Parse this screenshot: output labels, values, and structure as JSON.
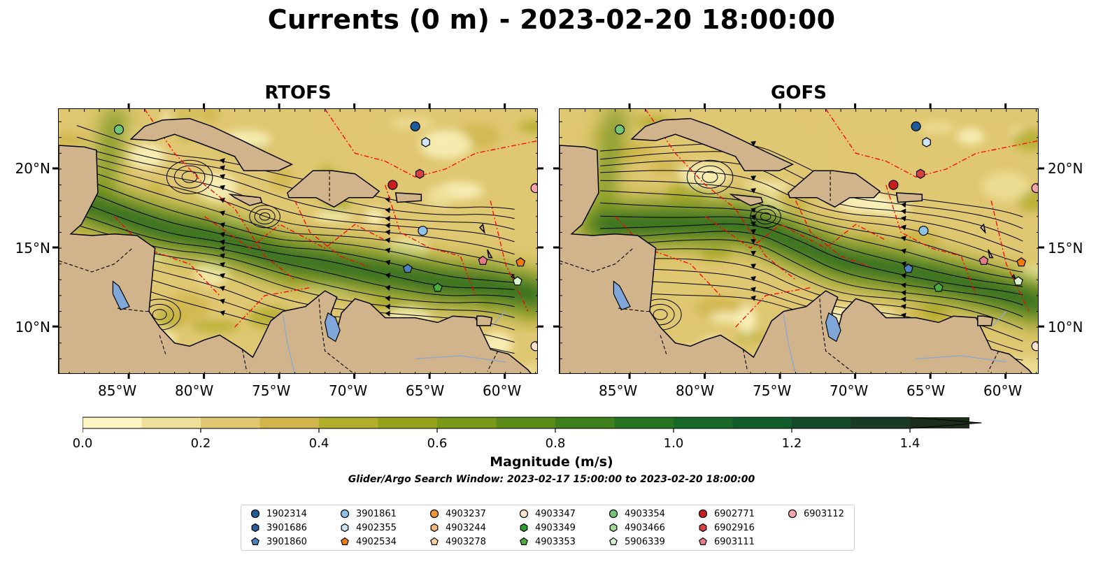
{
  "title": "Currents (0 m) - 2023-02-20 18:00:00",
  "panels": [
    {
      "title": "RTOFS"
    },
    {
      "title": "GOFS"
    }
  ],
  "map": {
    "lon_ticks": [
      "85°W",
      "80°W",
      "75°W",
      "70°W",
      "65°W",
      "60°W"
    ],
    "lat_ticks": [
      "20°N",
      "15°N",
      "10°N"
    ],
    "extent": {
      "lon": [
        -89.7,
        -57.8
      ],
      "lat": [
        7.0,
        23.8
      ]
    },
    "land_color": "#d2b48c",
    "lake_color": "#7fa7d9",
    "boundary_color": "#ff0000"
  },
  "colorbar": {
    "label": "Magnitude (m/s)",
    "tick_labels": [
      "0.0",
      "0.2",
      "0.4",
      "0.6",
      "0.8",
      "1.0",
      "1.2",
      "1.4"
    ],
    "range": [
      0.0,
      1.5
    ],
    "step": 0.1,
    "colors": [
      "#fdf6c3",
      "#efe09a",
      "#e0c772",
      "#cfb54b",
      "#b3ad2c",
      "#95a31b",
      "#79981a",
      "#5b8c1a",
      "#3f801c",
      "#287421",
      "#176928",
      "#115c2b",
      "#15492a",
      "#193a24",
      "#1c2e1b"
    ],
    "extend": "max"
  },
  "search_window": "Glider/Argo Search Window: 2023-02-17 15:00:00 to 2023-02-20 18:00:00",
  "legend": [
    {
      "id": "1902314",
      "marker": "circle",
      "color": "#1f5c99"
    },
    {
      "id": "3901686",
      "marker": "hexagon",
      "color": "#2a5d9c"
    },
    {
      "id": "3901860",
      "marker": "pentagon",
      "color": "#4a82c2"
    },
    {
      "id": "3901861",
      "marker": "circle",
      "color": "#8fc0e8"
    },
    {
      "id": "4902355",
      "marker": "hexagon",
      "color": "#cfe4f5"
    },
    {
      "id": "4902534",
      "marker": "pentagon",
      "color": "#f07c10"
    },
    {
      "id": "4903237",
      "marker": "circle",
      "color": "#f39436"
    },
    {
      "id": "4903244",
      "marker": "hexagon",
      "color": "#f8b47a"
    },
    {
      "id": "4903278",
      "marker": "pentagon",
      "color": "#fbcf9e"
    },
    {
      "id": "4903347",
      "marker": "circle",
      "color": "#fce4cc"
    },
    {
      "id": "4903349",
      "marker": "hexagon",
      "color": "#2ca02c"
    },
    {
      "id": "4903353",
      "marker": "pentagon",
      "color": "#4aae3a"
    },
    {
      "id": "4903354",
      "marker": "circle",
      "color": "#74c476"
    },
    {
      "id": "4903466",
      "marker": "hexagon",
      "color": "#a1d99b"
    },
    {
      "id": "5906339",
      "marker": "pentagon",
      "color": "#d7f2c8"
    },
    {
      "id": "6902771",
      "marker": "circle",
      "color": "#c81e1e"
    },
    {
      "id": "6902916",
      "marker": "hexagon",
      "color": "#d94040"
    },
    {
      "id": "6903111",
      "marker": "pentagon",
      "color": "#e87a86"
    },
    {
      "id": "6903112",
      "marker": "circle",
      "color": "#f6a5aa"
    }
  ],
  "floats": [
    {
      "id": "4903354",
      "lon": -85.7,
      "lat": 22.5
    },
    {
      "id": "1902314",
      "lon": -66.0,
      "lat": 22.7
    },
    {
      "id": "4902355",
      "lon": -65.3,
      "lat": 21.7
    },
    {
      "id": "6902916",
      "lon": -65.7,
      "lat": 19.7
    },
    {
      "id": "6902771",
      "lon": -67.5,
      "lat": 19.0
    },
    {
      "id": "6903112",
      "lon": -58.0,
      "lat": 18.8
    },
    {
      "id": "3901861",
      "lon": -65.5,
      "lat": 16.1
    },
    {
      "id": "6903111",
      "lon": -61.5,
      "lat": 14.2
    },
    {
      "id": "4902534",
      "lon": -59.0,
      "lat": 14.1
    },
    {
      "id": "3901860",
      "lon": -66.5,
      "lat": 13.7
    },
    {
      "id": "5906339",
      "lon": -59.2,
      "lat": 12.9
    },
    {
      "id": "4903353",
      "lon": -64.5,
      "lat": 12.5
    },
    {
      "id": "4903347",
      "lon": -58.0,
      "lat": 8.8
    }
  ]
}
